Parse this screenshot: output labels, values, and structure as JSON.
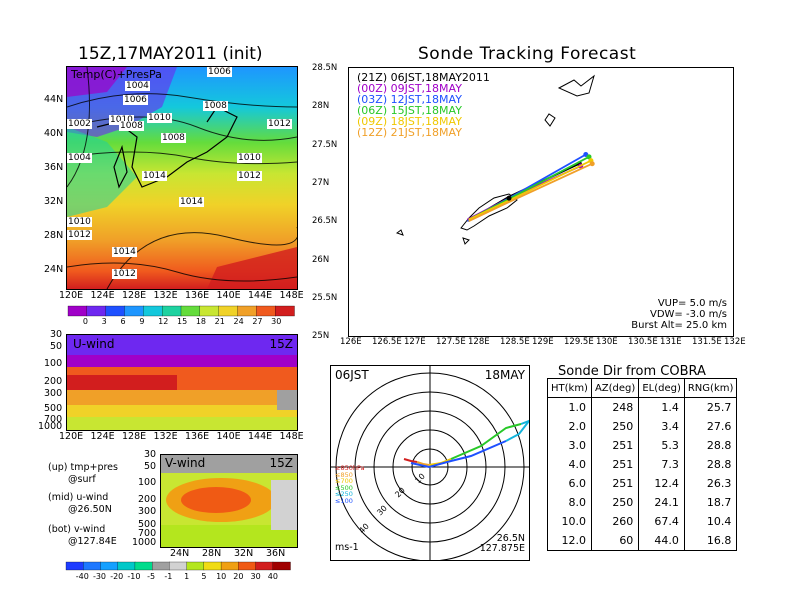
{
  "left_title": "15Z,17MAY2011 (init)",
  "right_title": "Sonde Tracking Forecast",
  "temp_map": {
    "overlay_label": "Temp(C)+PresPa",
    "lat_labels": [
      "44N",
      "40N",
      "36N",
      "32N",
      "28N",
      "24N"
    ],
    "lon_labels": [
      "120E",
      "124E",
      "128E",
      "132E",
      "136E",
      "140E",
      "144E",
      "148E"
    ],
    "pressure_labels": [
      "1006",
      "1004",
      "1006",
      "1008",
      "1002",
      "1010",
      "1008",
      "1010",
      "1012",
      "1008",
      "1010",
      "1004",
      "1014",
      "1012",
      "1014",
      "1010",
      "1012",
      "1014",
      "1012"
    ],
    "colorbar_ticks": [
      "0",
      "3",
      "6",
      "9",
      "12",
      "15",
      "18",
      "21",
      "24",
      "27",
      "30"
    ],
    "colorbar_colors": [
      "#a000c8",
      "#6e28f0",
      "#1e50ff",
      "#1e96ff",
      "#14c8dc",
      "#1ed2a0",
      "#64dc3c",
      "#c8e632",
      "#f0d228",
      "#f0a028",
      "#f05a1e",
      "#d21e1e"
    ]
  },
  "u_wind": {
    "label": "U-wind",
    "time": "15Z",
    "y_ticks": [
      "30",
      "50",
      "100",
      "200",
      "300",
      "500",
      "700",
      "1000"
    ],
    "x_ticks": [
      "120E",
      "124E",
      "128E",
      "132E",
      "136E",
      "140E",
      "144E",
      "148E"
    ]
  },
  "v_wind": {
    "label": "V-wind",
    "time": "15Z",
    "y_ticks": [
      "30",
      "50",
      "100",
      "200",
      "300",
      "500",
      "700",
      "1000"
    ],
    "x_ticks": [
      "24N",
      "28N",
      "32N",
      "36N"
    ],
    "colorbar_ticks": [
      "-40",
      "-30",
      "-20",
      "-10",
      "-5",
      "-1",
      "1",
      "5",
      "10",
      "20",
      "30",
      "40"
    ],
    "colorbar_colors": [
      "#1e3cff",
      "#1e78ff",
      "#14a0ff",
      "#00c8c8",
      "#00dc8c",
      "#a0a0a0",
      "#d2d2d2",
      "#b4e61e",
      "#f0dc14",
      "#f0a014",
      "#f05a14",
      "#d21e1e",
      "#a00000"
    ]
  },
  "legend_notes": [
    [
      "(up) tmp+pres",
      "@surf"
    ],
    [
      "(mid) u-wind",
      "@26.50N"
    ],
    [
      "(bot) v-wind",
      "@127.84E"
    ]
  ],
  "tracking_map": {
    "lat_labels": [
      "28.5N",
      "28N",
      "27.5N",
      "27N",
      "26.5N",
      "26N",
      "25.5N",
      "25N"
    ],
    "lon_labels": [
      "126E",
      "126.5E",
      "127E",
      "127.5E",
      "128E",
      "128.5E",
      "129E",
      "129.5E",
      "130E",
      "130.5E",
      "131E",
      "131.5E",
      "132E"
    ],
    "legend": [
      {
        "text": "(21Z)  06JST,18MAY2011",
        "color": "#000000"
      },
      {
        "text": "(00Z)  09JST,18MAY",
        "color": "#a000c8"
      },
      {
        "text": "(03Z)  12JST,18MAY",
        "color": "#1e50ff"
      },
      {
        "text": "(06Z)  15JST,18MAY",
        "color": "#28c828"
      },
      {
        "text": "(09Z)  18JST,18MAY",
        "color": "#f0c800"
      },
      {
        "text": "(12Z)  21JST,18MAY",
        "color": "#f0a028"
      }
    ],
    "params": [
      "VUP=  5.0  m/s",
      "VDW=  -3.0  m/s",
      "Burst Alt=  25.0  km"
    ]
  },
  "polar": {
    "time_label": "06JST",
    "date_label": "18MAY",
    "units": "ms-1",
    "position": [
      "26.5N",
      "127.875E"
    ],
    "ring_labels": [
      "10",
      "20",
      "30",
      "40"
    ],
    "level_legend": [
      {
        "text": "≥850hPa",
        "color": "#d21e1e"
      },
      {
        "text": "≤850",
        "color": "#f0a028"
      },
      {
        "text": "≤700",
        "color": "#f0c800"
      },
      {
        "text": "≤500",
        "color": "#28c828"
      },
      {
        "text": "≤250",
        "color": "#14b4dc"
      },
      {
        "text": "≤100",
        "color": "#1e50ff"
      }
    ]
  },
  "direction_table": {
    "title": "Sonde Dir from COBRA",
    "headers": [
      "HT(km)",
      "AZ(deg)",
      "EL(deg)",
      "RNG(km)"
    ],
    "rows": [
      [
        "1.0",
        "248",
        "1.4",
        "25.7"
      ],
      [
        "2.0",
        "250",
        "3.4",
        "27.6"
      ],
      [
        "3.0",
        "251",
        "5.3",
        "28.8"
      ],
      [
        "4.0",
        "251",
        "7.3",
        "28.8"
      ],
      [
        "6.0",
        "251",
        "12.4",
        "26.3"
      ],
      [
        "8.0",
        "250",
        "24.1",
        "18.7"
      ],
      [
        "10.0",
        "260",
        "67.4",
        "10.4"
      ],
      [
        "12.0",
        "60",
        "44.0",
        "16.8"
      ]
    ]
  },
  "chart_data": [
    {
      "type": "heatmap",
      "title": "15Z,17MAY2011 (init)",
      "variable": "Temp(C)+PresPa",
      "x_ticks": [
        "120E",
        "124E",
        "128E",
        "132E",
        "136E",
        "140E",
        "144E",
        "148E"
      ],
      "y_ticks": [
        "24N",
        "28N",
        "32N",
        "36N",
        "40N",
        "44N"
      ],
      "color_scale": [
        0,
        3,
        6,
        9,
        12,
        15,
        18,
        21,
        24,
        27,
        30
      ],
      "isobar_labels": [
        1002,
        1004,
        1006,
        1008,
        1010,
        1012,
        1014
      ]
    },
    {
      "type": "heatmap",
      "variable": "U-wind",
      "time": "15Z",
      "x_ticks": [
        "120E",
        "124E",
        "128E",
        "132E",
        "136E",
        "140E",
        "144E",
        "148E"
      ],
      "y_ticks": [
        30,
        50,
        100,
        200,
        300,
        500,
        700,
        1000
      ]
    },
    {
      "type": "heatmap",
      "variable": "V-wind",
      "time": "15Z",
      "x_ticks": [
        "24N",
        "28N",
        "32N",
        "36N"
      ],
      "y_ticks": [
        30,
        50,
        100,
        200,
        300,
        500,
        700,
        1000
      ],
      "color_scale": [
        -40,
        -30,
        -20,
        -10,
        -5,
        -1,
        1,
        5,
        10,
        20,
        30,
        40
      ]
    },
    {
      "type": "line",
      "title": "Sonde Tracking Forecast",
      "xlim": [
        126,
        132
      ],
      "ylim": [
        25,
        28.5
      ],
      "launch": {
        "lon": 128.5,
        "lat": 26.8
      },
      "series": [
        {
          "name": "(21Z) 06JST,18MAY2011",
          "color": "#000000",
          "x": [
            127.85,
            128.5,
            129.6
          ],
          "y": [
            26.5,
            26.82,
            27.25
          ]
        },
        {
          "name": "(00Z) 09JST,18MAY",
          "color": "#a000c8",
          "x": [
            127.85,
            128.5,
            129.62
          ],
          "y": [
            26.52,
            26.8,
            27.22
          ]
        },
        {
          "name": "(03Z) 12JST,18MAY",
          "color": "#1e50ff",
          "x": [
            127.85,
            128.5,
            129.7
          ],
          "y": [
            26.5,
            26.8,
            27.37
          ]
        },
        {
          "name": "(06Z) 15JST,18MAY",
          "color": "#28c828",
          "x": [
            127.87,
            128.5,
            129.75
          ],
          "y": [
            26.52,
            26.79,
            27.34
          ]
        },
        {
          "name": "(09Z) 18JST,18MAY",
          "color": "#f0c800",
          "x": [
            127.87,
            128.5,
            129.78
          ],
          "y": [
            26.52,
            26.77,
            27.29
          ]
        },
        {
          "name": "(12Z) 21JST,18MAY",
          "color": "#f0a028",
          "x": [
            127.87,
            128.5,
            129.8
          ],
          "y": [
            26.5,
            26.75,
            27.25
          ]
        }
      ]
    },
    {
      "type": "table",
      "title": "Sonde Dir from COBRA",
      "columns": [
        "HT(km)",
        "AZ(deg)",
        "EL(deg)",
        "RNG(km)"
      ],
      "rows": [
        [
          1.0,
          248,
          1.4,
          25.7
        ],
        [
          2.0,
          250,
          3.4,
          27.6
        ],
        [
          3.0,
          251,
          5.3,
          28.8
        ],
        [
          4.0,
          251,
          7.3,
          28.8
        ],
        [
          6.0,
          251,
          12.4,
          26.3
        ],
        [
          8.0,
          250,
          24.1,
          18.7
        ],
        [
          10.0,
          260,
          67.4,
          10.4
        ],
        [
          12.0,
          60,
          44.0,
          16.8
        ]
      ]
    }
  ]
}
